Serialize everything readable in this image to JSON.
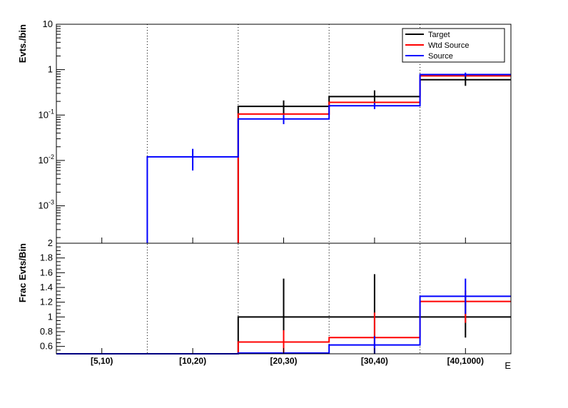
{
  "chart_data": [
    {
      "type": "histogram-step",
      "panel": "top",
      "ylabel": "Evts./bin",
      "yscale": "log",
      "ylim": [
        0.00015,
        10
      ],
      "y_ticks": [
        {
          "value": 0.001,
          "label": "10",
          "exp": "-3"
        },
        {
          "value": 0.01,
          "label": "10",
          "exp": "-2"
        },
        {
          "value": 0.1,
          "label": "10",
          "exp": "-1"
        },
        {
          "value": 1,
          "label": "1",
          "exp": ""
        },
        {
          "value": 10,
          "label": "10",
          "exp": ""
        }
      ],
      "bins": [
        "[5,10)",
        "[10,20)",
        "[20,30)",
        "[30,40)",
        "[40,1000)"
      ],
      "legend": {
        "position": "top-right",
        "entries": [
          "Target",
          "Wtd Source",
          "Source"
        ]
      },
      "series": [
        {
          "name": "Target",
          "color": "#000000",
          "values": [
            null,
            null,
            0.155,
            0.255,
            0.6
          ],
          "err_low": [
            null,
            null,
            0.1,
            0.17,
            0.44
          ],
          "err_high": [
            null,
            null,
            0.21,
            0.35,
            0.76
          ]
        },
        {
          "name": "Wtd Source",
          "color": "#ff0000",
          "values": [
            null,
            null,
            0.105,
            0.19,
            0.73
          ],
          "err_low": [
            null,
            null,
            null,
            null,
            null
          ],
          "err_high": [
            null,
            null,
            null,
            null,
            null
          ]
        },
        {
          "name": "Source",
          "color": "#0000ff",
          "values": [
            null,
            0.012,
            0.082,
            0.16,
            0.78
          ],
          "err_low": [
            null,
            0.006,
            0.063,
            0.135,
            0.7
          ],
          "err_high": [
            null,
            0.018,
            0.1,
            0.185,
            0.86
          ]
        }
      ]
    },
    {
      "type": "histogram-step",
      "panel": "bottom",
      "ylabel": "Frac Evts/Bin",
      "yscale": "linear",
      "ylim": [
        0.5,
        2
      ],
      "y_ticks": [
        0.6,
        0.8,
        1,
        1.2,
        1.4,
        1.6,
        1.8,
        2
      ],
      "y_tick_labels": [
        "0.6",
        "0.8",
        "1",
        "1.2",
        "1.4",
        "1.6",
        "1.8",
        "2"
      ],
      "bins": [
        "[5,10)",
        "[10,20)",
        "[20,30)",
        "[30,40)",
        "[40,1000)"
      ],
      "xlabel": "E",
      "series": [
        {
          "name": "Target",
          "color": "#000000",
          "values": [
            0.5,
            0.5,
            1.0,
            1.0,
            1.0
          ],
          "err_low": [
            null,
            null,
            0.5,
            0.42,
            0.72
          ],
          "err_high": [
            null,
            null,
            1.52,
            1.58,
            1.28
          ]
        },
        {
          "name": "Wtd Source",
          "color": "#ff0000",
          "values": [
            0.5,
            0.5,
            0.66,
            0.72,
            1.21
          ],
          "err_low": [
            null,
            null,
            0.5,
            0.55,
            0.92
          ],
          "err_high": [
            null,
            null,
            0.82,
            1.06,
            1.36
          ]
        },
        {
          "name": "Source",
          "color": "#0000ff",
          "values": [
            0.5,
            0.5,
            0.51,
            0.62,
            1.28
          ],
          "err_low": [
            null,
            null,
            null,
            0.5,
            1.04
          ],
          "err_high": [
            null,
            null,
            null,
            0.74,
            1.52
          ]
        }
      ]
    }
  ]
}
